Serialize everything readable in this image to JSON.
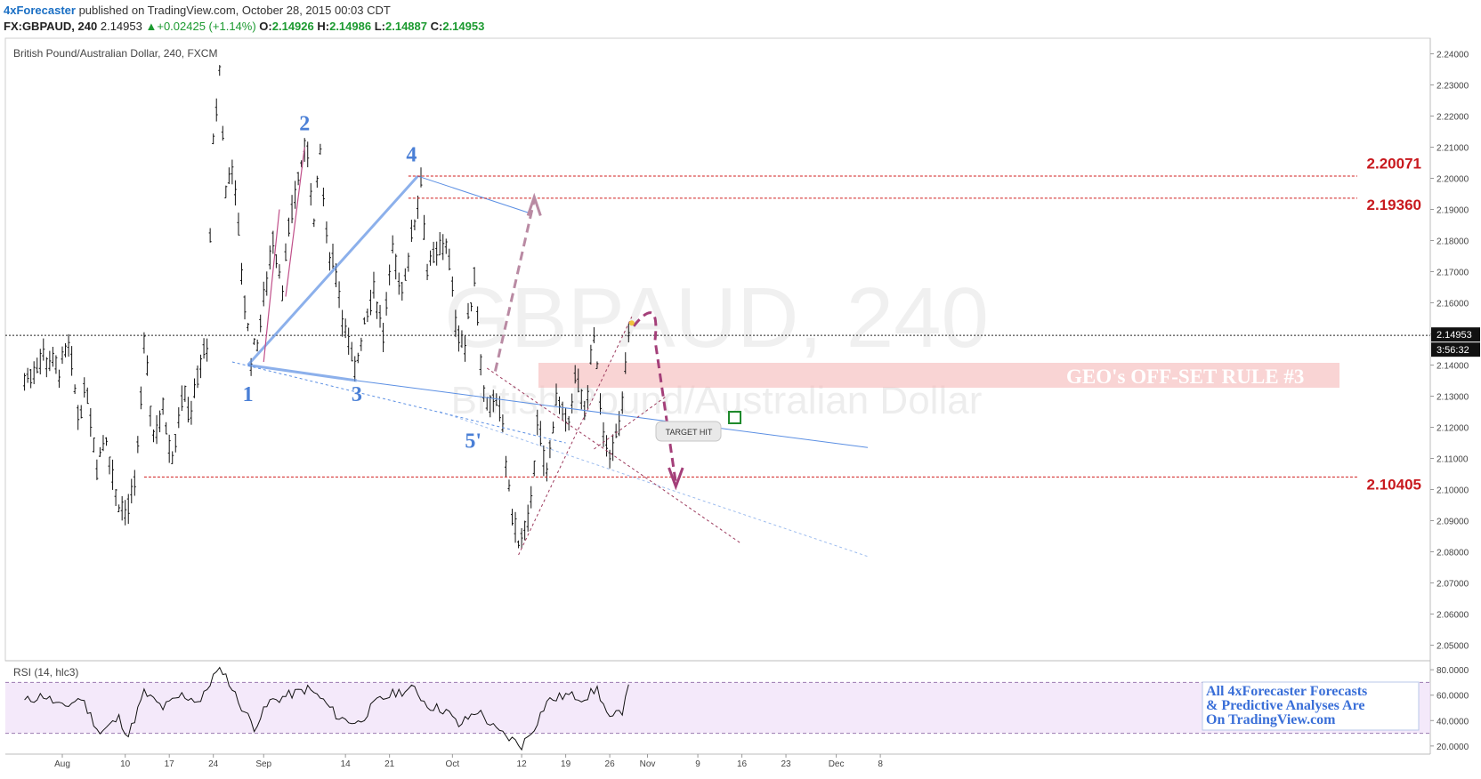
{
  "header": {
    "publisher": "4xForecaster",
    "published_text": "published on TradingView.com, October 28, 2015 00:03 CDT",
    "symbol": "FX:GBPAUD, 240",
    "last": "2.14953",
    "change_arrow": "▲",
    "change": "+0.02425 (+1.14%)",
    "o_label": "O:",
    "o_value": "2.14926",
    "h_label": "H:",
    "h_value": "2.14986",
    "l_label": "L:",
    "l_value": "2.14887",
    "c_label": "C:",
    "c_value": "2.14953"
  },
  "chart_data": {
    "type": "candlestick",
    "title": "British Pound/Australian Dollar, 240, FXCM",
    "watermark": "GBPAUD, 240",
    "watermark_sub": "British Pound/Australian Dollar",
    "ylim": [
      2.045,
      2.245
    ],
    "y_ticks": [
      "2.24000",
      "2.23000",
      "2.22000",
      "2.21000",
      "2.20000",
      "2.19000",
      "2.18000",
      "2.17000",
      "2.16000",
      "2.15000",
      "2.14000",
      "2.13000",
      "2.12000",
      "2.11000",
      "2.10000",
      "2.09000",
      "2.08000",
      "2.07000",
      "2.06000",
      "2.05000"
    ],
    "y_tick_values": [
      2.24,
      2.23,
      2.22,
      2.21,
      2.2,
      2.19,
      2.18,
      2.17,
      2.16,
      2.15,
      2.14,
      2.13,
      2.12,
      2.11,
      2.1,
      2.09,
      2.08,
      2.07,
      2.06,
      2.05
    ],
    "x_ticks": [
      {
        "label": "Aug",
        "day": 0
      },
      {
        "label": "10",
        "day": 10
      },
      {
        "label": "17",
        "day": 17
      },
      {
        "label": "24",
        "day": 24
      },
      {
        "label": "Sep",
        "day": 32
      },
      {
        "label": "14",
        "day": 45
      },
      {
        "label": "21",
        "day": 52
      },
      {
        "label": "Oct",
        "day": 62
      },
      {
        "label": "12",
        "day": 73
      },
      {
        "label": "19",
        "day": 80
      },
      {
        "label": "26",
        "day": 87
      },
      {
        "label": "Nov",
        "day": 93
      },
      {
        "label": "9",
        "day": 101
      },
      {
        "label": "16",
        "day": 108
      },
      {
        "label": "23",
        "day": 115
      },
      {
        "label": "Dec",
        "day": 123
      },
      {
        "label": "8",
        "day": 130
      }
    ],
    "current_price": "2.14953",
    "countdown": "3:56:32",
    "path_points": [
      {
        "day": -6,
        "price": 2.135
      },
      {
        "day": -3,
        "price": 2.143
      },
      {
        "day": -0.5,
        "price": 2.138
      },
      {
        "day": 1,
        "price": 2.145
      },
      {
        "day": 2.5,
        "price": 2.125
      },
      {
        "day": 4,
        "price": 2.132
      },
      {
        "day": 5.5,
        "price": 2.108
      },
      {
        "day": 7,
        "price": 2.118
      },
      {
        "day": 8.5,
        "price": 2.098
      },
      {
        "day": 10,
        "price": 2.092
      },
      {
        "day": 11.5,
        "price": 2.1
      },
      {
        "day": 13,
        "price": 2.145
      },
      {
        "day": 14.5,
        "price": 2.118
      },
      {
        "day": 16,
        "price": 2.125
      },
      {
        "day": 17.5,
        "price": 2.112
      },
      {
        "day": 19,
        "price": 2.13
      },
      {
        "day": 20.5,
        "price": 2.125
      },
      {
        "day": 22,
        "price": 2.14
      },
      {
        "day": 23,
        "price": 2.147
      },
      {
        "day": 24,
        "price": 2.21
      },
      {
        "day": 25,
        "price": 2.235
      },
      {
        "day": 26,
        "price": 2.195
      },
      {
        "day": 27,
        "price": 2.205
      },
      {
        "day": 28.5,
        "price": 2.17
      },
      {
        "day": 30,
        "price": 2.142
      },
      {
        "day": 31,
        "price": 2.148
      },
      {
        "day": 32,
        "price": 2.16
      },
      {
        "day": 33.5,
        "price": 2.182
      },
      {
        "day": 35,
        "price": 2.165
      },
      {
        "day": 36.5,
        "price": 2.19
      },
      {
        "day": 38,
        "price": 2.205
      },
      {
        "day": 39,
        "price": 2.21
      },
      {
        "day": 40,
        "price": 2.185
      },
      {
        "day": 41,
        "price": 2.208
      },
      {
        "day": 42,
        "price": 2.18
      },
      {
        "day": 43.5,
        "price": 2.17
      },
      {
        "day": 45,
        "price": 2.15
      },
      {
        "day": 46.5,
        "price": 2.137
      },
      {
        "day": 48,
        "price": 2.155
      },
      {
        "day": 49.5,
        "price": 2.165
      },
      {
        "day": 51,
        "price": 2.15
      },
      {
        "day": 52.5,
        "price": 2.175
      },
      {
        "day": 54,
        "price": 2.165
      },
      {
        "day": 55.5,
        "price": 2.18
      },
      {
        "day": 57,
        "price": 2.2
      },
      {
        "day": 58,
        "price": 2.17
      },
      {
        "day": 59.5,
        "price": 2.175
      },
      {
        "day": 61,
        "price": 2.18
      },
      {
        "day": 62.5,
        "price": 2.155
      },
      {
        "day": 64,
        "price": 2.145
      },
      {
        "day": 65.5,
        "price": 2.17
      },
      {
        "day": 67,
        "price": 2.13
      },
      {
        "day": 68.5,
        "price": 2.128
      },
      {
        "day": 70,
        "price": 2.12
      },
      {
        "day": 71,
        "price": 2.098
      },
      {
        "day": 72.5,
        "price": 2.082
      },
      {
        "day": 74,
        "price": 2.088
      },
      {
        "day": 75.5,
        "price": 2.12
      },
      {
        "day": 77,
        "price": 2.105
      },
      {
        "day": 78.5,
        "price": 2.13
      },
      {
        "day": 80,
        "price": 2.12
      },
      {
        "day": 81.5,
        "price": 2.135
      },
      {
        "day": 83,
        "price": 2.125
      },
      {
        "day": 84.5,
        "price": 2.148
      },
      {
        "day": 86,
        "price": 2.115
      },
      {
        "day": 87.5,
        "price": 2.112
      },
      {
        "day": 89,
        "price": 2.125
      },
      {
        "day": 90,
        "price": 2.15
      }
    ],
    "rsi": {
      "label": "RSI (14, hlc3)",
      "ylim": [
        15,
        85
      ],
      "ticks": [
        80,
        60,
        40,
        20
      ],
      "tick_labels": [
        "80.0000",
        "60.0000",
        "40.0000",
        "20.0000"
      ],
      "upper": 70,
      "lower": 30,
      "points": [
        {
          "day": -6,
          "v": 55
        },
        {
          "day": -3,
          "v": 60
        },
        {
          "day": 0,
          "v": 50
        },
        {
          "day": 3,
          "v": 58
        },
        {
          "day": 6,
          "v": 30
        },
        {
          "day": 9,
          "v": 42
        },
        {
          "day": 10.5,
          "v": 28
        },
        {
          "day": 13,
          "v": 62
        },
        {
          "day": 16,
          "v": 50
        },
        {
          "day": 19,
          "v": 60
        },
        {
          "day": 22,
          "v": 55
        },
        {
          "day": 24,
          "v": 75
        },
        {
          "day": 25.5,
          "v": 80
        },
        {
          "day": 28,
          "v": 55
        },
        {
          "day": 30.5,
          "v": 35
        },
        {
          "day": 33,
          "v": 55
        },
        {
          "day": 36,
          "v": 60
        },
        {
          "day": 39,
          "v": 65
        },
        {
          "day": 41,
          "v": 58
        },
        {
          "day": 44,
          "v": 42
        },
        {
          "day": 47,
          "v": 38
        },
        {
          "day": 50,
          "v": 55
        },
        {
          "day": 53,
          "v": 62
        },
        {
          "day": 56,
          "v": 65
        },
        {
          "day": 58,
          "v": 52
        },
        {
          "day": 61,
          "v": 48
        },
        {
          "day": 63,
          "v": 36
        },
        {
          "day": 66,
          "v": 48
        },
        {
          "day": 69,
          "v": 32
        },
        {
          "day": 71.5,
          "v": 25
        },
        {
          "day": 73,
          "v": 20
        },
        {
          "day": 75,
          "v": 35
        },
        {
          "day": 77,
          "v": 55
        },
        {
          "day": 80,
          "v": 60
        },
        {
          "day": 83,
          "v": 58
        },
        {
          "day": 85,
          "v": 65
        },
        {
          "day": 87,
          "v": 40
        },
        {
          "day": 89,
          "v": 48
        },
        {
          "day": 90,
          "v": 72
        }
      ]
    },
    "wave_labels": [
      {
        "text": "1",
        "day": 29.5,
        "price": 2.1285
      },
      {
        "text": "2",
        "day": 38.5,
        "price": 2.2155
      },
      {
        "text": "3",
        "day": 46.8,
        "price": 2.1285
      },
      {
        "text": "4",
        "day": 55.5,
        "price": 2.2055
      },
      {
        "text": "5'",
        "day": 65.3,
        "price": 2.1135
      }
    ],
    "levels": [
      {
        "label": "2.20071",
        "price": 2.20071,
        "day_start": 55,
        "text_price": 2.2032
      },
      {
        "label": "2.19360",
        "price": 2.1936,
        "day_start": 55,
        "text_price": 2.1898
      },
      {
        "label": "2.10405",
        "price": 2.10405,
        "day_start": 13,
        "text_price": 2.1
      }
    ],
    "annotations": {
      "geo_rule": "GEO's OFF-SET RULE #3",
      "target_hit": "TARGET HIT",
      "ad_lines": [
        "All 4xForecaster Forecasts",
        "& Predictive Analyses Are",
        "On TradingView.com"
      ]
    },
    "colors": {
      "candles": "#111111",
      "trendline": "#5b8fe3",
      "level": "#d01c1c",
      "wave_label": "#4a7fd6",
      "projection": "#b98aa3",
      "forecast": "#a43f79",
      "band": "#f5b8b8",
      "rsi_fill": "#f0e0f8"
    }
  }
}
